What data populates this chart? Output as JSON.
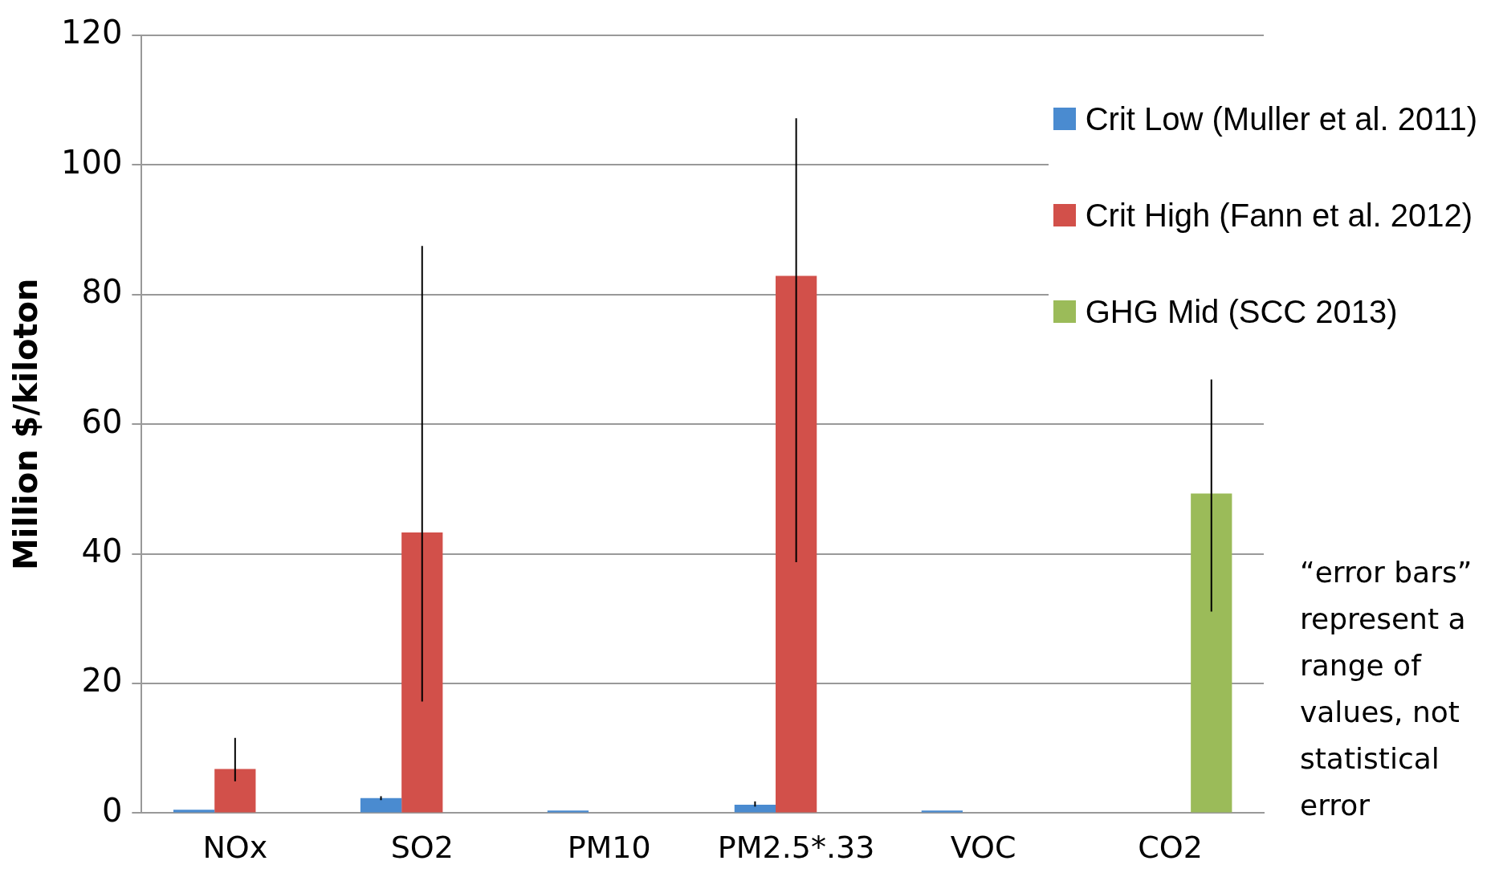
{
  "chart_data": {
    "type": "bar",
    "ylabel": "Million $/kiloton",
    "categories": [
      "NOx",
      "SO2",
      "PM10",
      "PM2.5*.33",
      "VOC",
      "CO2"
    ],
    "series": [
      {
        "name": "Crit Low (Muller et al. 2011)",
        "color": "#4a8bd0",
        "values": [
          0.5,
          2.3,
          0.4,
          1.3,
          0.4,
          null
        ],
        "errors": [
          null,
          [
            2,
            2.6
          ],
          null,
          [
            1,
            1.8
          ],
          null,
          null
        ]
      },
      {
        "name": "Crit High (Fann et al. 2012)",
        "color": "#d2504a",
        "values": [
          6.8,
          43.3,
          null,
          82.9,
          null,
          null
        ],
        "errors": [
          [
            4.9,
            11.6
          ],
          [
            17.2,
            87.5
          ],
          null,
          [
            38.7,
            107.2
          ],
          null,
          null
        ]
      },
      {
        "name": "GHG Mid (SCC 2013)",
        "color": "#9bbb59",
        "values": [
          null,
          null,
          null,
          null,
          null,
          49.3
        ],
        "errors": [
          null,
          null,
          null,
          null,
          null,
          [
            31.1,
            66.9
          ]
        ]
      }
    ],
    "ylim": [
      0,
      120
    ],
    "yticks": [
      0,
      20,
      40,
      60,
      80,
      100,
      120
    ],
    "grid": "y",
    "legend": "top right",
    "annotations": [
      "“error bars” represent a range of values, not statistical error"
    ]
  }
}
